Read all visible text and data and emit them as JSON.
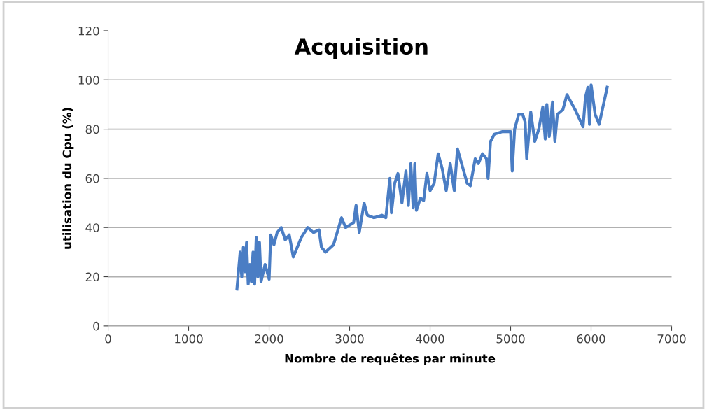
{
  "chart_data": {
    "type": "line",
    "title": "Acquisition",
    "xlabel": "Nombre de requêtes par minute",
    "ylabel": "utilisation du Cpu (%)",
    "xlim": [
      0,
      7000
    ],
    "xticks": [
      0,
      1000,
      2000,
      3000,
      4000,
      5000,
      6000,
      7000
    ],
    "ylim": [
      0,
      120
    ],
    "yticks": [
      0,
      20,
      40,
      60,
      80,
      100,
      120
    ],
    "grid": "y",
    "marker": "none",
    "line_style": "solid",
    "series": [
      {
        "color": "#4a7dc4",
        "x": [
          1600,
          1640,
          1660,
          1680,
          1700,
          1720,
          1740,
          1760,
          1780,
          1800,
          1820,
          1840,
          1860,
          1880,
          1900,
          1950,
          2000,
          2020,
          2060,
          2100,
          2150,
          2200,
          2250,
          2300,
          2350,
          2400,
          2480,
          2550,
          2620,
          2650,
          2700,
          2800,
          2900,
          2950,
          3050,
          3080,
          3120,
          3180,
          3220,
          3300,
          3400,
          3450,
          3500,
          3520,
          3560,
          3600,
          3650,
          3700,
          3730,
          3760,
          3790,
          3810,
          3830,
          3880,
          3920,
          3960,
          4000,
          4050,
          4100,
          4150,
          4200,
          4250,
          4300,
          4340,
          4400,
          4460,
          4500,
          4560,
          4600,
          4650,
          4700,
          4720,
          4750,
          4800,
          4900,
          5000,
          5020,
          5050,
          5100,
          5150,
          5180,
          5200,
          5250,
          5300,
          5350,
          5400,
          5430,
          5450,
          5480,
          5520,
          5550,
          5580,
          5650,
          5700,
          5800,
          5900,
          5930,
          5960,
          5980,
          6000,
          6050,
          6100,
          6200
        ],
        "values": [
          15,
          30,
          20,
          32,
          22,
          34,
          17,
          25,
          18,
          30,
          17,
          36,
          20,
          34,
          18,
          25,
          19,
          37,
          33,
          38,
          40,
          35,
          37,
          28,
          32,
          36,
          40,
          38,
          39,
          32,
          30,
          33,
          44,
          40,
          42,
          49,
          38,
          50,
          45,
          44,
          45,
          44,
          60,
          46,
          58,
          62,
          50,
          63,
          49,
          66,
          48,
          66,
          47,
          52,
          51,
          62,
          55,
          58,
          70,
          64,
          55,
          66,
          55,
          72,
          65,
          58,
          57,
          68,
          66,
          70,
          68,
          60,
          75,
          78,
          79,
          79,
          63,
          80,
          86,
          86,
          83,
          68,
          87,
          75,
          80,
          89,
          76,
          90,
          77,
          91,
          75,
          86,
          88,
          94,
          88,
          81,
          93,
          97,
          82,
          98,
          86,
          82,
          97
        ]
      }
    ]
  }
}
